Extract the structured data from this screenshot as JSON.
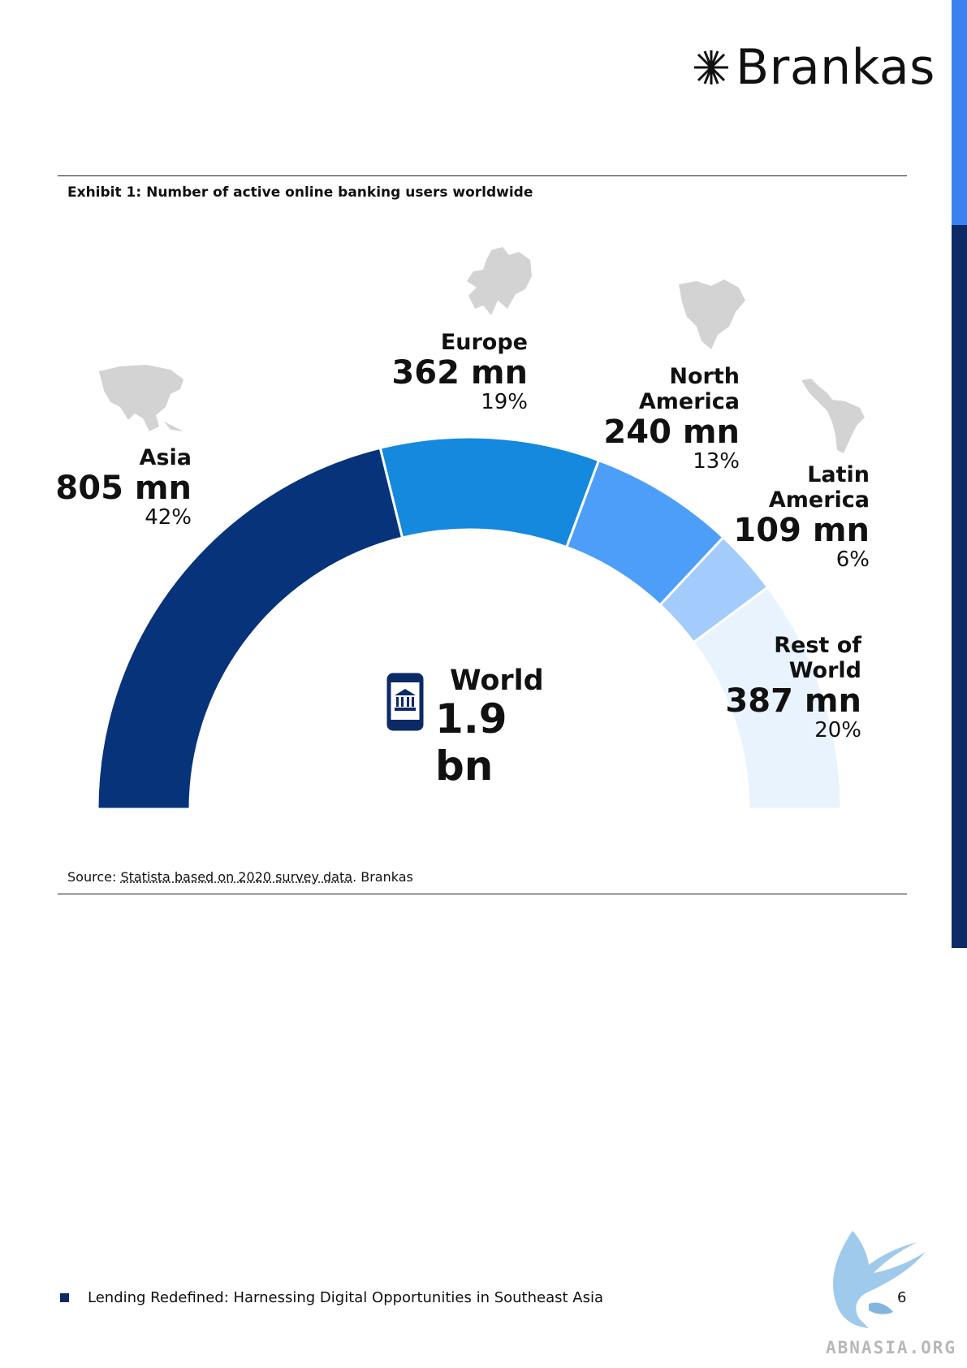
{
  "brand": {
    "name": "Brankas"
  },
  "exhibit": {
    "title": "Exhibit 1: Number of active online banking users worldwide"
  },
  "chart_data": {
    "type": "pie",
    "variant": "half-donut",
    "title": "Exhibit 1: Number of active online banking users worldwide",
    "total": {
      "name": "World",
      "value_label": "1.9 bn"
    },
    "slices": [
      {
        "name": "Asia",
        "value": 805,
        "value_label": "805 mn",
        "percent_label": "42%",
        "color": "#07337a"
      },
      {
        "name": "Europe",
        "value": 362,
        "value_label": "362 mn",
        "percent_label": "19%",
        "color": "#1489dd"
      },
      {
        "name": "North America",
        "name_lines": [
          "North",
          "America"
        ],
        "value": 240,
        "value_label": "240 mn",
        "percent_label": "13%",
        "color": "#4d9ef8"
      },
      {
        "name": "Latin America",
        "name_lines": [
          "Latin",
          "America"
        ],
        "value": 109,
        "value_label": "109 mn",
        "percent_label": "6%",
        "color": "#a3cbfb"
      },
      {
        "name": "Rest of World",
        "name_lines": [
          "Rest of",
          "World"
        ],
        "value": 387,
        "value_label": "387 mn",
        "percent_label": "20%",
        "color": "#e9f3fe"
      }
    ]
  },
  "source": {
    "prefix": "Source: ",
    "link": "Statista based on 2020 survey data",
    "suffix": ". Brankas"
  },
  "footer": {
    "title": "Lending Redefined: Harnessing Digital Opportunities in Southeast Asia",
    "page": "6"
  },
  "watermark": {
    "text": "ABNASIA.ORG"
  }
}
